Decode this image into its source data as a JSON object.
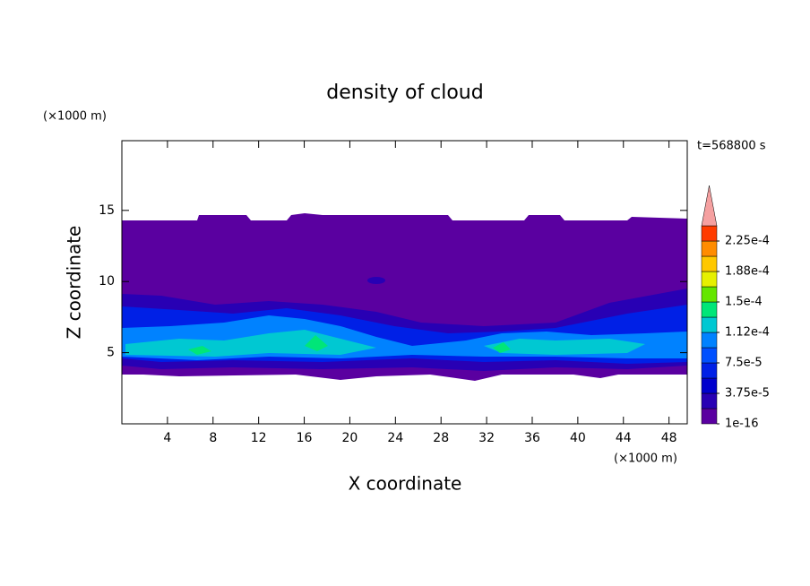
{
  "chart_data": {
    "type": "contour",
    "title": "density of cloud",
    "xlabel": "X coordinate",
    "ylabel": "Z coordinate",
    "xunit": "(×1000 m)",
    "yunit": "(×1000 m)",
    "time_label": "t=568800 s",
    "xlim": [
      0,
      49.6
    ],
    "ylim": [
      0,
      19.9
    ],
    "xticks": [
      4,
      8,
      12,
      16,
      20,
      24,
      28,
      32,
      36,
      40,
      44,
      48
    ],
    "yticks": [
      5,
      10,
      15
    ],
    "colorbar": {
      "clim": [
        1e-16,
        0.000225
      ],
      "ticks": [
        {
          "value": 1e-16,
          "label": "1e-16"
        },
        {
          "value": 3.75e-05,
          "label": "3.75e-5"
        },
        {
          "value": 7.5e-05,
          "label": "7.5e-5"
        },
        {
          "value": 0.0001125,
          "label": "1.12e-4"
        },
        {
          "value": 0.00015,
          "label": "1.5e-4"
        },
        {
          "value": 0.0001875,
          "label": "1.88e-4"
        },
        {
          "value": 0.000225,
          "label": "2.25e-4"
        }
      ],
      "colors": [
        "#5a00a0",
        "#2800b4",
        "#0000cd",
        "#0020e6",
        "#0050ff",
        "#0082ff",
        "#00c8d2",
        "#00e678",
        "#64e600",
        "#e6f000",
        "#ffc800",
        "#ff8c00",
        "#ff3c00"
      ],
      "extend_color": "#f5a0a0"
    }
  }
}
